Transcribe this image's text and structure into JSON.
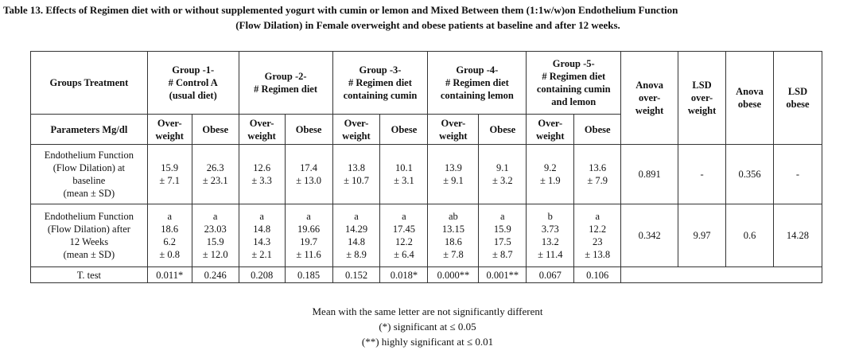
{
  "caption": {
    "line1": "Table 13. Effects of Regimen diet with or without supplemented yogurt with cumin or lemon and Mixed Between them (1:1w/w)on Endothelium Function",
    "line2": "(Flow Dilation) in Female overweight and obese patients at baseline and after 12 weeks."
  },
  "header": {
    "groups_treatment": "Groups Treatment",
    "parameters": "Parameters Mg/dl",
    "groups": [
      {
        "title": "Group -1-",
        "desc": [
          "# Control A",
          "(usual diet)"
        ]
      },
      {
        "title": "Group -2-",
        "desc": [
          "# Regimen diet"
        ]
      },
      {
        "title": "Group -3-",
        "desc": [
          "# Regimen diet",
          "containing cumin"
        ]
      },
      {
        "title": "Group -4-",
        "desc": [
          "# Regimen diet",
          "containing lemon"
        ]
      },
      {
        "title": "Group -5-",
        "desc": [
          "# Regimen diet",
          "containing cumin",
          "and lemon"
        ]
      }
    ],
    "overweight": [
      "Over-",
      "weight"
    ],
    "obese": "Obese",
    "stats": [
      [
        "Anova",
        "over-",
        "weight"
      ],
      [
        "LSD",
        "over-",
        "weight"
      ],
      [
        "Anova",
        "obese"
      ],
      [
        "LSD",
        "obese"
      ]
    ]
  },
  "rows": {
    "baseline": {
      "label": [
        "Endothelium Function",
        "(Flow Dilation) at",
        "baseline",
        "(mean ± SD)"
      ],
      "cells": [
        [
          "15.9",
          "± 7.1"
        ],
        [
          "26.3",
          "± 23.1"
        ],
        [
          "12.6",
          "± 3.3"
        ],
        [
          "17.4",
          "± 13.0"
        ],
        [
          "13.8",
          "± 10.7"
        ],
        [
          "10.1",
          "± 3.1"
        ],
        [
          "13.9",
          "± 9.1"
        ],
        [
          "9.1",
          "± 3.2"
        ],
        [
          "9.2",
          "± 1.9"
        ],
        [
          "13.6",
          "± 7.9"
        ]
      ],
      "stats": [
        "0.891",
        "-",
        "0.356",
        "-"
      ]
    },
    "after": {
      "label": [
        "Endothelium Function",
        "(Flow Dilation) after",
        "12 Weeks",
        "(mean ± SD)"
      ],
      "cells": [
        [
          "a",
          "18.6",
          "6.2",
          "± 0.8"
        ],
        [
          "a",
          "23.03",
          "15.9",
          "± 12.0"
        ],
        [
          "a",
          "14.8",
          "14.3",
          "± 2.1"
        ],
        [
          "a",
          "19.66",
          "19.7",
          "± 11.6"
        ],
        [
          "a",
          "14.29",
          "14.8",
          "± 8.9"
        ],
        [
          "a",
          "17.45",
          "12.2",
          "± 6.4"
        ],
        [
          "ab",
          "13.15",
          "18.6",
          "± 7.8"
        ],
        [
          "a",
          "15.9",
          "17.5",
          "± 8.7"
        ],
        [
          "b",
          "3.73",
          "13.2",
          "± 11.4"
        ],
        [
          "a",
          "12.2",
          "23",
          "± 13.8"
        ]
      ],
      "stats": [
        "0.342",
        "9.97",
        "0.6",
        "14.28"
      ]
    },
    "ttest": {
      "label": "T. test",
      "cells": [
        "0.011*",
        "0.246",
        "0.208",
        "0.185",
        "0.152",
        "0.018*",
        "0.000**",
        "0.001**",
        "0.067",
        "0.106"
      ]
    }
  },
  "notes": [
    "Mean with the same letter are not significantly different",
    "(*) significant at ≤ 0.05",
    "(**) highly significant at ≤ 0.01"
  ]
}
